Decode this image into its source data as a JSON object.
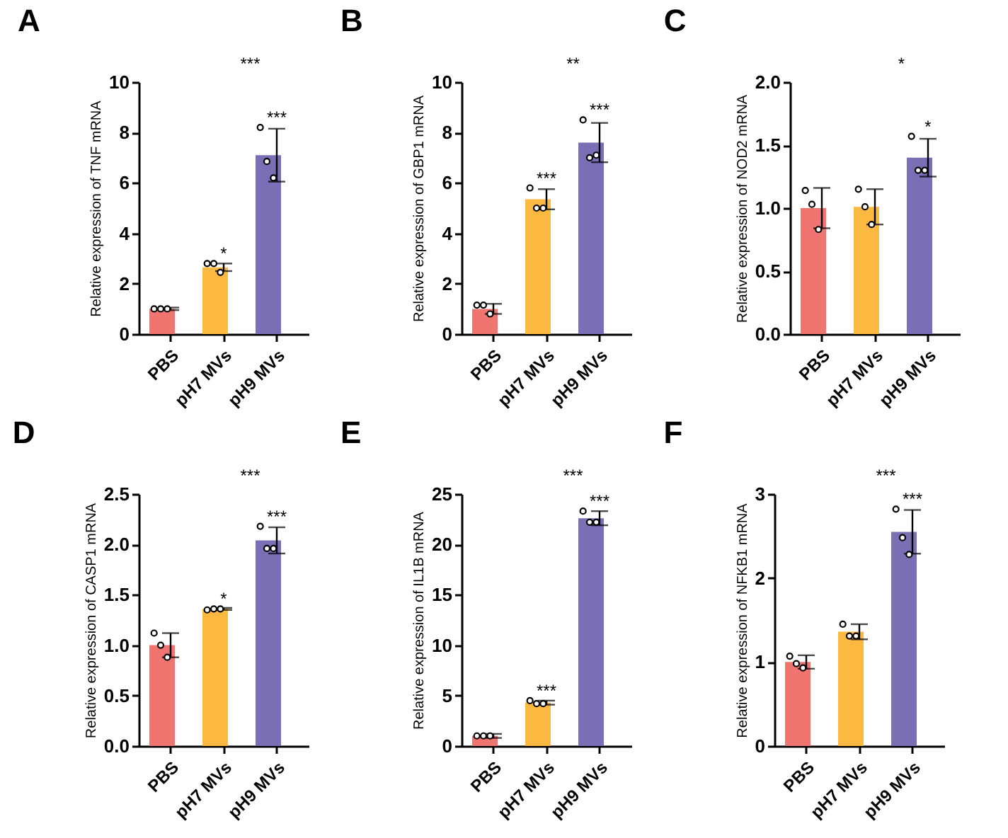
{
  "chart_data": [
    {
      "type": "bar",
      "title": "A",
      "ylabel": "Relative expression of  TNF mRNA",
      "categories": [
        "PBS",
        "pH7 MVs",
        "pH9 MVs"
      ],
      "values": [
        1.0,
        2.65,
        7.1
      ],
      "colors": [
        "#f07470",
        "#fbb941",
        "#7a6fb5"
      ],
      "errors": [
        0.05,
        0.15,
        1.05
      ],
      "ylim": [
        0,
        10
      ],
      "yticks": [
        0,
        2,
        4,
        6,
        8,
        10
      ],
      "series": [
        {
          "type": "scatter",
          "marker": "circle",
          "color": "#000000",
          "x": [
            "PBS",
            "PBS",
            "PBS",
            "pH7 MVs",
            "pH7 MVs",
            "pH7 MVs",
            "pH9 MVs",
            "pH9 MVs",
            "pH9 MVs"
          ],
          "values": [
            1.0,
            1.0,
            1.0,
            2.8,
            2.8,
            2.45,
            8.2,
            6.85,
            6.2
          ]
        }
      ],
      "annotations": [
        {
          "text": "*",
          "x": "pH7 MVs",
          "y": 2.8
        },
        {
          "text": "***",
          "x": "pH9 MVs",
          "y": 8.2
        },
        "***"
      ]
    },
    {
      "type": "bar",
      "title": "B",
      "ylabel": "Relative expression of  GBP1 mRNA",
      "categories": [
        "PBS",
        "pH7 MVs",
        "pH9 MVs"
      ],
      "values": [
        1.0,
        5.35,
        7.6
      ],
      "colors": [
        "#f07470",
        "#fbb941",
        "#7a6fb5"
      ],
      "errors": [
        0.2,
        0.4,
        0.78
      ],
      "ylim": [
        0,
        10
      ],
      "yticks": [
        0,
        2,
        4,
        6,
        8,
        10
      ],
      "series": [
        {
          "type": "scatter",
          "marker": "circle",
          "color": "#000000",
          "x": [
            "PBS",
            "PBS",
            "PBS",
            "pH7 MVs",
            "pH7 MVs",
            "pH7 MVs",
            "pH9 MVs",
            "pH9 MVs",
            "pH9 MVs"
          ],
          "values": [
            1.15,
            1.15,
            0.8,
            5.8,
            5.0,
            5.0,
            8.5,
            7.0,
            7.1
          ]
        }
      ],
      "annotations": [
        {
          "text": "***",
          "x": "pH7 MVs",
          "y": 5.8
        },
        {
          "text": "***",
          "x": "pH9 MVs",
          "y": 8.5
        },
        "**"
      ]
    },
    {
      "type": "bar",
      "title": "C",
      "ylabel": "Relative expression of  NOD2 mRNA",
      "categories": [
        "PBS",
        "pH7 MVs",
        "pH9 MVs"
      ],
      "values": [
        1.0,
        1.01,
        1.4
      ],
      "colors": [
        "#f07470",
        "#fbb941",
        "#7a6fb5"
      ],
      "errors": [
        0.16,
        0.14,
        0.15
      ],
      "ylim": [
        0,
        2
      ],
      "yticks": [
        {
          "value": 0,
          "label": "0.0"
        },
        0.5,
        {
          "value": 1,
          "label": "1.0"
        },
        1.5,
        {
          "value": 2,
          "label": "2.0"
        }
      ],
      "series": [
        {
          "type": "scatter",
          "marker": "circle",
          "color": "#000000",
          "x": [
            "PBS",
            "PBS",
            "PBS",
            "pH7 MVs",
            "pH7 MVs",
            "pH7 MVs",
            "pH9 MVs",
            "pH9 MVs",
            "pH9 MVs"
          ],
          "values": [
            1.14,
            1.03,
            0.83,
            1.15,
            1.01,
            0.87,
            1.57,
            1.3,
            1.3
          ]
        }
      ],
      "annotations": [
        {
          "text": "*",
          "x": "pH9 MVs",
          "y": 1.57
        },
        "*"
      ]
    },
    {
      "type": "bar",
      "title": "D",
      "ylabel": "Relative expression of  CASP1 mRNA",
      "categories": [
        "PBS",
        "pH7 MVs",
        "pH9 MVs"
      ],
      "values": [
        1.0,
        1.36,
        2.04
      ],
      "colors": [
        "#f07470",
        "#fbb941",
        "#7a6fb5"
      ],
      "errors": [
        0.12,
        0.01,
        0.13
      ],
      "ylim": [
        0,
        2.5
      ],
      "yticks": [
        {
          "value": 0,
          "label": "0.0"
        },
        0.5,
        {
          "value": 1,
          "label": "1.0"
        },
        1.5,
        {
          "value": 2,
          "label": "2.0"
        },
        2.5
      ],
      "series": [
        {
          "type": "scatter",
          "marker": "circle",
          "color": "#000000",
          "x": [
            "PBS",
            "PBS",
            "PBS",
            "pH7 MVs",
            "pH7 MVs",
            "pH7 MVs",
            "pH9 MVs",
            "pH9 MVs",
            "pH9 MVs"
          ],
          "values": [
            1.12,
            1.0,
            0.88,
            1.35,
            1.36,
            1.36,
            2.18,
            1.96,
            1.96
          ]
        }
      ],
      "annotations": [
        {
          "text": "*",
          "x": "pH7 MVs",
          "y": 1.36
        },
        {
          "text": "***",
          "x": "pH9 MVs",
          "y": 2.18
        },
        "***"
      ]
    },
    {
      "type": "bar",
      "title": "E",
      "ylabel": "Relative expression of  IL1B mRNA",
      "categories": [
        "PBS",
        "pH7 MVs",
        "pH9 MVs"
      ],
      "values": [
        1.0,
        4.3,
        22.6
      ],
      "colors": [
        "#f07470",
        "#fbb941",
        "#7a6fb5"
      ],
      "errors": [
        0.2,
        0.2,
        0.7
      ],
      "ylim": [
        0,
        25
      ],
      "yticks": [
        0,
        5,
        10,
        15,
        20,
        25
      ],
      "series": [
        {
          "type": "scatter",
          "marker": "circle",
          "color": "#000000",
          "x": [
            "PBS",
            "PBS",
            "PBS",
            "pH7 MVs",
            "pH7 MVs",
            "pH7 MVs",
            "pH9 MVs",
            "pH9 MVs",
            "pH9 MVs"
          ],
          "values": [
            1.0,
            1.0,
            1.0,
            4.5,
            4.2,
            4.2,
            23.3,
            22.2,
            22.2
          ]
        }
      ],
      "annotations": [
        {
          "text": "***",
          "x": "pH7 MVs",
          "y": 4.5
        },
        {
          "text": "***",
          "x": "pH9 MVs",
          "y": 23.3
        },
        "***"
      ]
    },
    {
      "type": "bar",
      "title": "F",
      "ylabel": "Relative expression of  NFKB1 mRNA",
      "categories": [
        "PBS",
        "pH7 MVs",
        "pH9 MVs"
      ],
      "values": [
        1.0,
        1.36,
        2.55
      ],
      "colors": [
        "#f07470",
        "#fbb941",
        "#7a6fb5"
      ],
      "errors": [
        0.08,
        0.09,
        0.26
      ],
      "ylim": [
        0,
        3
      ],
      "yticks": [
        0,
        1,
        2,
        3
      ],
      "series": [
        {
          "type": "scatter",
          "marker": "circle",
          "color": "#000000",
          "x": [
            "PBS",
            "PBS",
            "PBS",
            "pH7 MVs",
            "pH7 MVs",
            "pH7 MVs",
            "pH9 MVs",
            "pH9 MVs",
            "pH9 MVs"
          ],
          "values": [
            1.07,
            0.98,
            0.93,
            1.45,
            1.31,
            1.31,
            2.82,
            2.48,
            2.28
          ]
        }
      ],
      "annotations": [
        {
          "text": "***",
          "x": "pH9 MVs",
          "y": 2.82
        },
        "***"
      ]
    }
  ]
}
